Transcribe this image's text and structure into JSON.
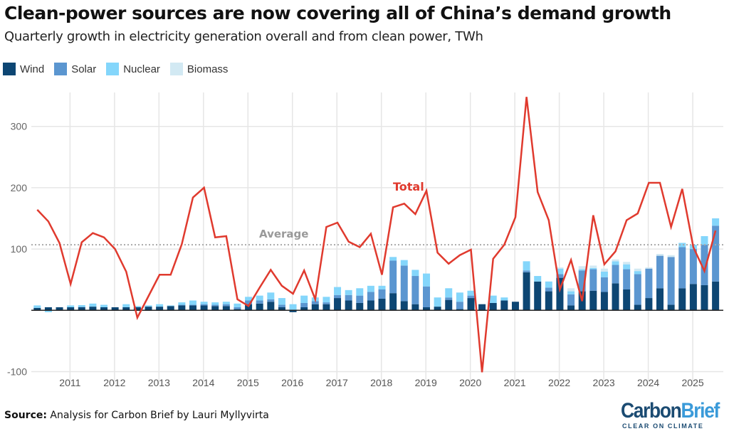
{
  "title": "Clean-power sources are now covering all of China’s demand growth",
  "subtitle": "Quarterly growth in electricity generation overall and from clean power, TWh",
  "legend": [
    {
      "label": "Wind",
      "color": "#0d4673"
    },
    {
      "label": "Solar",
      "color": "#5b96d0"
    },
    {
      "label": "Nuclear",
      "color": "#84d6fb"
    },
    {
      "label": "Biomass",
      "color": "#d2e9f3"
    }
  ],
  "source": {
    "label": "Source:",
    "text": "Analysis for Carbon Brief by Lauri Myllyvirta"
  },
  "logo": {
    "word1": "Carbon",
    "word2": "Brief",
    "tagline": "CLEAR ON CLIMATE",
    "color1": "#1b4b72",
    "color2": "#3a9ad9"
  },
  "chart_data": {
    "type": "bar+line",
    "stacked": true,
    "title": "Clean-power sources are now covering all of China’s demand growth",
    "subtitle": "Quarterly growth in electricity generation overall and from clean power, TWh",
    "ylim": [
      -100,
      355
    ],
    "yticks": [
      -100,
      100,
      200,
      300
    ],
    "xticks": [
      "2011",
      "2012",
      "2013",
      "2014",
      "2015",
      "2016",
      "2017",
      "2018",
      "2019",
      "2020",
      "2021",
      "2022",
      "2023",
      "2024",
      "2025"
    ],
    "grid": true,
    "legend_position": "top-left",
    "categories": [
      "2010Q1",
      "2010Q2",
      "2010Q3",
      "2010Q4",
      "2011Q1",
      "2011Q2",
      "2011Q3",
      "2011Q4",
      "2012Q1",
      "2012Q2",
      "2012Q3",
      "2012Q4",
      "2013Q1",
      "2013Q2",
      "2013Q3",
      "2013Q4",
      "2014Q1",
      "2014Q2",
      "2014Q3",
      "2014Q4",
      "2015Q1",
      "2015Q2",
      "2015Q3",
      "2015Q4",
      "2016Q1",
      "2016Q2",
      "2016Q3",
      "2016Q4",
      "2017Q1",
      "2017Q2",
      "2017Q3",
      "2017Q4",
      "2018Q1",
      "2018Q2",
      "2018Q3",
      "2018Q4",
      "2019Q1",
      "2019Q2",
      "2019Q3",
      "2019Q4",
      "2020Q1",
      "2020Q2",
      "2020Q3",
      "2020Q4",
      "2021Q1",
      "2021Q2",
      "2021Q3",
      "2021Q4",
      "2022Q1",
      "2022Q2",
      "2022Q3",
      "2022Q4",
      "2023Q1",
      "2023Q2",
      "2023Q3",
      "2023Q4",
      "2024Q1",
      "2024Q2",
      "2024Q3",
      "2024Q4",
      "2025Q1",
      "2025Q2"
    ],
    "series": [
      {
        "name": "Wind",
        "kind": "bar",
        "color": "#0d4673",
        "values": [
          4,
          5,
          5,
          5,
          5,
          6,
          5,
          5,
          5,
          5,
          6,
          6,
          7,
          8,
          8,
          8,
          7,
          7,
          2,
          10,
          11,
          14,
          5,
          -3,
          5,
          10,
          10,
          20,
          16,
          12,
          16,
          19,
          28,
          15,
          10,
          5,
          6,
          17,
          2,
          20,
          10,
          12,
          16,
          14,
          62,
          47,
          31,
          53,
          8,
          31,
          32,
          30,
          44,
          34,
          9,
          20,
          36,
          9,
          36,
          43,
          41,
          47
        ]
      },
      {
        "name": "Solar",
        "kind": "bar",
        "color": "#5b96d0",
        "values": [
          0,
          0,
          0,
          0,
          0.5,
          0,
          0,
          0,
          0,
          0,
          0,
          0,
          0,
          1,
          1,
          2,
          2,
          3,
          3,
          6,
          5,
          4,
          4,
          0,
          7,
          5,
          3,
          5,
          9,
          12,
          14,
          15,
          53,
          58,
          46,
          34,
          0,
          4,
          12,
          4,
          0,
          0,
          0,
          0,
          3,
          0,
          6,
          6,
          18,
          34,
          35,
          24,
          30,
          33,
          50,
          48,
          53,
          78,
          67,
          57,
          66,
          91
        ]
      },
      {
        "name": "Nuclear",
        "kind": "bar",
        "color": "#84d6fb",
        "values": [
          4,
          -3,
          0,
          3,
          3,
          5,
          4,
          0,
          5,
          2,
          2,
          4,
          1,
          4,
          7,
          4,
          4,
          4,
          6,
          6,
          8,
          11,
          11,
          10,
          12,
          6,
          9,
          13,
          8,
          12,
          10,
          6,
          6,
          9,
          10,
          21,
          15,
          15,
          15,
          8,
          0,
          12,
          5,
          0,
          15,
          9,
          10,
          9,
          5,
          2,
          2,
          9,
          6,
          8,
          5,
          0,
          0,
          0,
          7,
          7,
          14,
          12
        ]
      },
      {
        "name": "Biomass",
        "kind": "bar",
        "color": "#d2e9f3",
        "values": [
          0,
          0,
          0,
          0,
          0,
          0,
          0,
          0,
          0,
          0,
          0,
          0,
          0,
          0,
          0,
          0,
          0,
          0,
          0,
          0,
          0,
          0,
          0,
          0,
          0,
          0,
          0,
          0,
          0,
          0,
          0,
          0,
          0,
          0,
          0,
          0,
          0,
          0,
          0,
          0,
          0,
          0,
          0,
          0,
          0,
          0,
          0,
          2,
          5,
          5,
          4,
          5,
          3,
          4,
          4,
          2,
          3,
          3,
          0,
          0,
          0,
          0
        ]
      },
      {
        "name": "Total",
        "kind": "line",
        "color": "#e03a2e",
        "values": [
          164,
          145,
          110,
          43,
          111,
          126,
          119,
          100,
          63,
          -12,
          23,
          58,
          58,
          108,
          184,
          200,
          119,
          121,
          18,
          7,
          37,
          66,
          40,
          27,
          65,
          18,
          136,
          143,
          112,
          103,
          125,
          58,
          168,
          174,
          157,
          195,
          94,
          76,
          90,
          99,
          -101,
          84,
          107,
          152,
          348,
          193,
          147,
          34,
          82,
          15,
          155,
          75,
          96,
          147,
          158,
          208,
          208,
          136,
          198,
          103,
          64,
          130
        ]
      }
    ],
    "average": {
      "label": "Average",
      "value": 107
    },
    "annotations": [
      {
        "text": "Total",
        "series": "Total"
      },
      {
        "text": "Average"
      }
    ]
  }
}
